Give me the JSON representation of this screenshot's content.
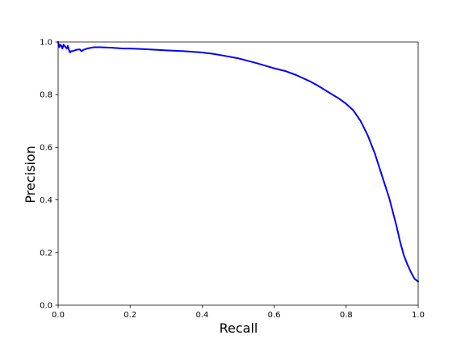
{
  "chart_data": {
    "type": "line",
    "title": "",
    "xlabel": "Recall",
    "ylabel": "Precision",
    "xlim": [
      0.0,
      1.0
    ],
    "ylim": [
      0.0,
      1.0
    ],
    "xticks": [
      "0.0",
      "0.2",
      "0.4",
      "0.6",
      "0.8",
      "1.0"
    ],
    "yticks": [
      "0.0",
      "0.2",
      "0.4",
      "0.6",
      "0.8",
      "1.0"
    ],
    "grid": false,
    "legend": "none",
    "series": [
      {
        "color": "#0000ff",
        "x": [
          0.0,
          0.003,
          0.006,
          0.009,
          0.012,
          0.015,
          0.018,
          0.021,
          0.024,
          0.027,
          0.03,
          0.033,
          0.036,
          0.04,
          0.05,
          0.06,
          0.065,
          0.07,
          0.08,
          0.1,
          0.12,
          0.15,
          0.18,
          0.2,
          0.25,
          0.3,
          0.35,
          0.4,
          0.43,
          0.46,
          0.5,
          0.55,
          0.6,
          0.63,
          0.66,
          0.7,
          0.72,
          0.75,
          0.78,
          0.8,
          0.82,
          0.84,
          0.86,
          0.88,
          0.9,
          0.92,
          0.94,
          0.95,
          0.96,
          0.97,
          0.98,
          0.99,
          1.0
        ],
        "y": [
          1.0,
          0.98,
          0.99,
          0.985,
          0.975,
          0.99,
          0.985,
          0.98,
          0.975,
          0.985,
          0.97,
          0.96,
          0.965,
          0.965,
          0.97,
          0.972,
          0.965,
          0.97,
          0.975,
          0.98,
          0.98,
          0.978,
          0.975,
          0.975,
          0.972,
          0.968,
          0.965,
          0.96,
          0.955,
          0.948,
          0.938,
          0.92,
          0.9,
          0.89,
          0.875,
          0.85,
          0.835,
          0.81,
          0.785,
          0.765,
          0.74,
          0.7,
          0.645,
          0.575,
          0.49,
          0.405,
          0.3,
          0.24,
          0.19,
          0.155,
          0.125,
          0.1,
          0.09
        ]
      }
    ]
  }
}
